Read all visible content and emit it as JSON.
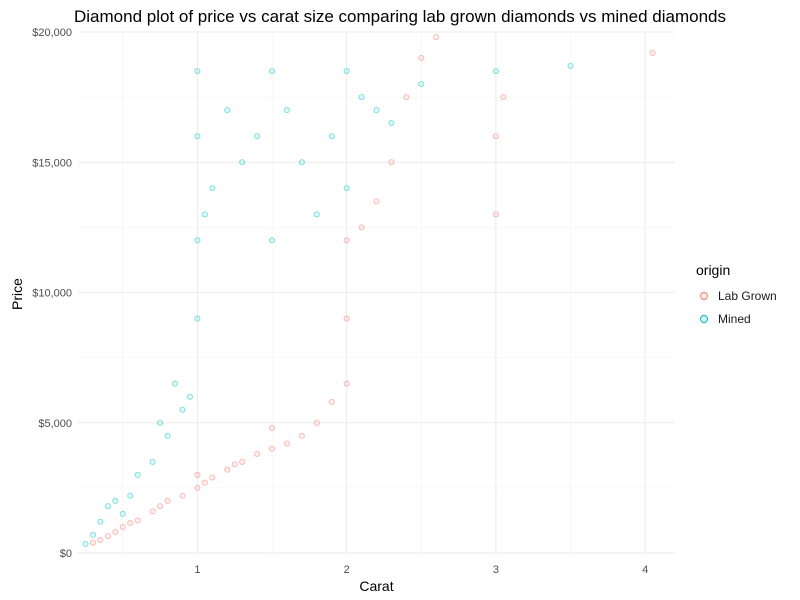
{
  "chart_data": {
    "type": "scatter",
    "title": "Diamond plot of price vs carat size comparing lab grown diamonds vs mined diamonds",
    "xlabel": "Carat",
    "ylabel": "Price",
    "xlim": [
      0.2,
      4.2
    ],
    "ylim": [
      0,
      20000
    ],
    "x_ticks": [
      1,
      2,
      3,
      4
    ],
    "x_tick_labels": [
      "1",
      "2",
      "3",
      "4"
    ],
    "y_ticks": [
      0,
      5000,
      10000,
      15000,
      20000
    ],
    "y_tick_labels": [
      "$0",
      "$5,000",
      "$10,000",
      "$15,000",
      "$20,000"
    ],
    "grid": true,
    "legend": {
      "title": "origin",
      "position": "right",
      "entries": [
        "Lab Grown",
        "Mined"
      ]
    },
    "series": [
      {
        "name": "Lab Grown",
        "color": "#F8766D",
        "points": [
          [
            0.3,
            400
          ],
          [
            0.35,
            500
          ],
          [
            0.4,
            650
          ],
          [
            0.45,
            800
          ],
          [
            0.5,
            1000
          ],
          [
            0.55,
            1150
          ],
          [
            0.6,
            1250
          ],
          [
            0.7,
            1600
          ],
          [
            0.75,
            1800
          ],
          [
            0.8,
            2000
          ],
          [
            0.9,
            2200
          ],
          [
            1.0,
            2500
          ],
          [
            1.0,
            3000
          ],
          [
            1.05,
            2700
          ],
          [
            1.1,
            2900
          ],
          [
            1.2,
            3200
          ],
          [
            1.25,
            3400
          ],
          [
            1.3,
            3500
          ],
          [
            1.4,
            3800
          ],
          [
            1.5,
            4000
          ],
          [
            1.5,
            4800
          ],
          [
            1.6,
            4200
          ],
          [
            1.7,
            4500
          ],
          [
            1.8,
            5000
          ],
          [
            1.9,
            5800
          ],
          [
            2.0,
            6500
          ],
          [
            2.0,
            9000
          ],
          [
            2.0,
            12000
          ],
          [
            2.1,
            12500
          ],
          [
            2.2,
            13500
          ],
          [
            2.3,
            15000
          ],
          [
            2.4,
            17500
          ],
          [
            2.5,
            19000
          ],
          [
            2.6,
            19800
          ],
          [
            3.0,
            13000
          ],
          [
            3.0,
            16000
          ],
          [
            3.05,
            17500
          ],
          [
            4.05,
            19200
          ]
        ]
      },
      {
        "name": "Mined",
        "color": "#00BFC4",
        "points": [
          [
            0.25,
            350
          ],
          [
            0.3,
            700
          ],
          [
            0.35,
            1200
          ],
          [
            0.4,
            1800
          ],
          [
            0.45,
            2000
          ],
          [
            0.5,
            1500
          ],
          [
            0.55,
            2200
          ],
          [
            0.6,
            3000
          ],
          [
            0.7,
            3500
          ],
          [
            0.75,
            5000
          ],
          [
            0.8,
            4500
          ],
          [
            0.85,
            6500
          ],
          [
            0.9,
            5500
          ],
          [
            0.95,
            6000
          ],
          [
            1.0,
            9000
          ],
          [
            1.0,
            12000
          ],
          [
            1.0,
            16000
          ],
          [
            1.0,
            18500
          ],
          [
            1.05,
            13000
          ],
          [
            1.1,
            14000
          ],
          [
            1.2,
            17000
          ],
          [
            1.3,
            15000
          ],
          [
            1.4,
            16000
          ],
          [
            1.5,
            12000
          ],
          [
            1.5,
            18500
          ],
          [
            1.6,
            17000
          ],
          [
            1.7,
            15000
          ],
          [
            1.8,
            13000
          ],
          [
            1.9,
            16000
          ],
          [
            2.0,
            14000
          ],
          [
            2.0,
            18500
          ],
          [
            2.1,
            17500
          ],
          [
            2.2,
            17000
          ],
          [
            2.3,
            16500
          ],
          [
            2.5,
            18000
          ],
          [
            3.0,
            18500
          ],
          [
            3.5,
            18700
          ]
        ]
      }
    ]
  }
}
